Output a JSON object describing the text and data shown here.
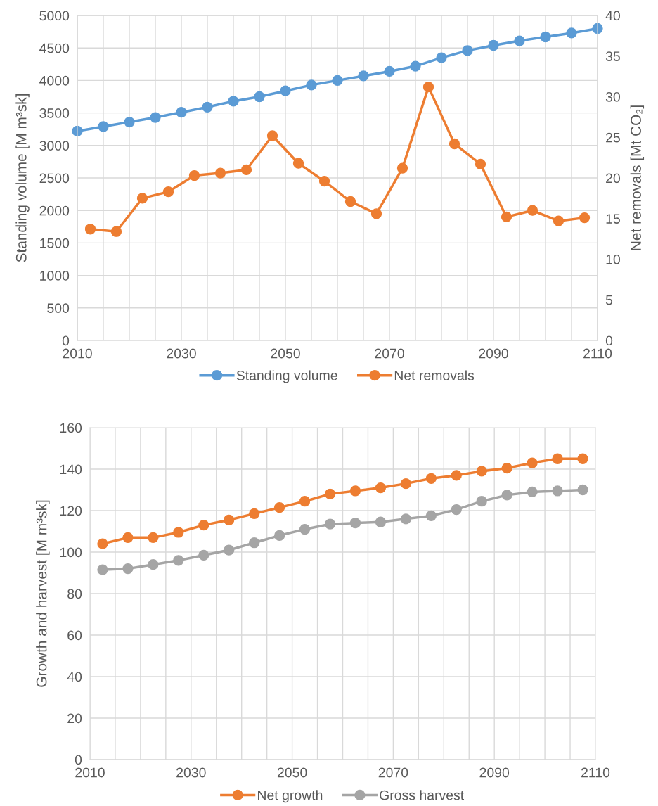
{
  "chart_data": [
    {
      "type": "line",
      "ylabel": "Standing volume [M m³sk]",
      "y2label": "Net removals [Mt CO₂]",
      "xlim": [
        2010,
        2110
      ],
      "xticks": [
        2010,
        {
          "value": 2015,
          "label": null
        },
        {
          "value": 2020,
          "label": null
        },
        {
          "value": 2025,
          "label": null
        },
        2030,
        {
          "value": 2035,
          "label": null
        },
        {
          "value": 2040,
          "label": null
        },
        {
          "value": 2045,
          "label": null
        },
        2050,
        {
          "value": 2055,
          "label": null
        },
        {
          "value": 2060,
          "label": null
        },
        {
          "value": 2065,
          "label": null
        },
        2070,
        {
          "value": 2075,
          "label": null
        },
        {
          "value": 2080,
          "label": null
        },
        {
          "value": 2085,
          "label": null
        },
        2090,
        {
          "value": 2095,
          "label": null
        },
        {
          "value": 2100,
          "label": null
        },
        {
          "value": 2105,
          "label": null
        },
        2110
      ],
      "ylim": [
        0,
        5000
      ],
      "yticks": [
        0,
        500,
        1000,
        1500,
        2000,
        2500,
        3000,
        3500,
        4000,
        4500,
        5000
      ],
      "y2lim": [
        0,
        40
      ],
      "y2ticks": [
        0,
        5,
        10,
        15,
        20,
        25,
        30,
        35,
        40
      ],
      "grid": true,
      "legend": "bottom",
      "marker": "circle",
      "line_style": "solid",
      "series": [
        {
          "name": "Standing volume",
          "color": "#5b9bd5",
          "x": [
            2010,
            2015,
            2020,
            2025,
            2030,
            2035,
            2040,
            2045,
            2050,
            2055,
            2060,
            2065,
            2070,
            2075,
            2080,
            2085,
            2090,
            2095,
            2100,
            2105,
            2110
          ],
          "values": [
            3220,
            3290,
            3360,
            3430,
            3510,
            3590,
            3680,
            3750,
            3840,
            3930,
            4000,
            4070,
            4140,
            4220,
            4350,
            4460,
            4540,
            4610,
            4670,
            4730,
            4800
          ]
        },
        {
          "name": "Net removals",
          "color": "#ed7d31",
          "axis": "y2",
          "x": [
            2012.5,
            2017.5,
            2022.5,
            2027.5,
            2032.5,
            2037.5,
            2042.5,
            2047.5,
            2052.5,
            2057.5,
            2062.5,
            2067.5,
            2072.5,
            2077.5,
            2082.5,
            2087.5,
            2092.5,
            2097.5,
            2102.5,
            2107.5
          ],
          "values": [
            13.7,
            13.4,
            17.5,
            18.3,
            20.3,
            20.6,
            21.0,
            25.2,
            21.8,
            19.6,
            17.1,
            15.6,
            21.2,
            31.2,
            24.2,
            21.7,
            15.2,
            16.0,
            14.7,
            15.1
          ]
        }
      ]
    },
    {
      "type": "line",
      "ylabel": "Growth and harvest [M m³sk]",
      "xlim": [
        2010,
        2110
      ],
      "xticks": [
        2010,
        {
          "value": 2015,
          "label": null
        },
        {
          "value": 2020,
          "label": null
        },
        {
          "value": 2025,
          "label": null
        },
        2030,
        {
          "value": 2035,
          "label": null
        },
        {
          "value": 2040,
          "label": null
        },
        {
          "value": 2045,
          "label": null
        },
        2050,
        {
          "value": 2055,
          "label": null
        },
        {
          "value": 2060,
          "label": null
        },
        {
          "value": 2065,
          "label": null
        },
        2070,
        {
          "value": 2075,
          "label": null
        },
        {
          "value": 2080,
          "label": null
        },
        {
          "value": 2085,
          "label": null
        },
        2090,
        {
          "value": 2095,
          "label": null
        },
        {
          "value": 2100,
          "label": null
        },
        {
          "value": 2105,
          "label": null
        },
        2110
      ],
      "ylim": [
        0,
        160
      ],
      "yticks": [
        0,
        20,
        40,
        60,
        80,
        100,
        120,
        140,
        160
      ],
      "grid": true,
      "legend": "bottom",
      "marker": "circle",
      "line_style": "solid",
      "series": [
        {
          "name": "Net growth",
          "color": "#ed7d31",
          "x": [
            2012.5,
            2017.5,
            2022.5,
            2027.5,
            2032.5,
            2037.5,
            2042.5,
            2047.5,
            2052.5,
            2057.5,
            2062.5,
            2067.5,
            2072.5,
            2077.5,
            2082.5,
            2087.5,
            2092.5,
            2097.5,
            2102.5,
            2107.5
          ],
          "values": [
            104,
            107,
            107,
            109.5,
            113,
            115.5,
            118.5,
            121.5,
            124.5,
            128,
            129.5,
            131,
            133,
            135.5,
            137,
            139,
            140.5,
            143,
            145,
            145
          ]
        },
        {
          "name": "Gross harvest",
          "color": "#a5a5a5",
          "x": [
            2012.5,
            2017.5,
            2022.5,
            2027.5,
            2032.5,
            2037.5,
            2042.5,
            2047.5,
            2052.5,
            2057.5,
            2062.5,
            2067.5,
            2072.5,
            2077.5,
            2082.5,
            2087.5,
            2092.5,
            2097.5,
            2102.5,
            2107.5
          ],
          "values": [
            91.5,
            92,
            94,
            96,
            98.5,
            101,
            104.5,
            108,
            111,
            113.5,
            114,
            114.5,
            116,
            117.5,
            120.5,
            124.5,
            127.5,
            129,
            129.5,
            130
          ]
        }
      ]
    }
  ]
}
